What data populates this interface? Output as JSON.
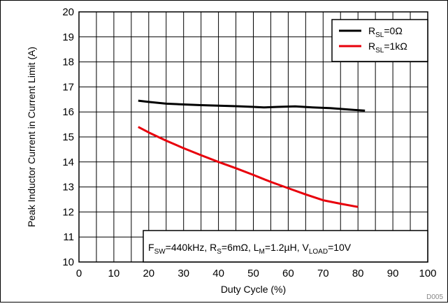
{
  "chart_data": {
    "type": "line",
    "xlabel": "Duty Cycle (%)",
    "ylabel": "Peak Inductor Current in Current Limit (A)",
    "xlim": [
      0,
      100
    ],
    "ylim": [
      10,
      20
    ],
    "x_ticks": [
      0,
      10,
      20,
      30,
      40,
      50,
      60,
      70,
      80,
      90,
      100
    ],
    "y_ticks": [
      10,
      11,
      12,
      13,
      14,
      15,
      16,
      17,
      18,
      19,
      20
    ],
    "minor_x_step": 5,
    "grid": true,
    "legend_position": "top-right",
    "series": [
      {
        "name_main": "R",
        "name_sub": "SL",
        "name_rest": "=0Ω",
        "color": "#000000",
        "points": [
          [
            17,
            16.45
          ],
          [
            20,
            16.4
          ],
          [
            25,
            16.33
          ],
          [
            30,
            16.3
          ],
          [
            35,
            16.27
          ],
          [
            40,
            16.25
          ],
          [
            45,
            16.23
          ],
          [
            50,
            16.2
          ],
          [
            53,
            16.18
          ],
          [
            57,
            16.2
          ],
          [
            62,
            16.22
          ],
          [
            67,
            16.18
          ],
          [
            72,
            16.15
          ],
          [
            77,
            16.1
          ],
          [
            82,
            16.05
          ]
        ]
      },
      {
        "name_main": "R",
        "name_sub": "SL",
        "name_rest": "=1kΩ",
        "color": "#e8000b",
        "points": [
          [
            17,
            15.4
          ],
          [
            20,
            15.18
          ],
          [
            25,
            14.85
          ],
          [
            30,
            14.55
          ],
          [
            35,
            14.27
          ],
          [
            40,
            14.0
          ],
          [
            45,
            13.75
          ],
          [
            50,
            13.48
          ],
          [
            55,
            13.2
          ],
          [
            60,
            12.95
          ],
          [
            65,
            12.7
          ],
          [
            70,
            12.47
          ],
          [
            75,
            12.33
          ],
          [
            80,
            12.2
          ]
        ]
      }
    ],
    "annotation": {
      "parts": [
        {
          "t": "F",
          "sub": false
        },
        {
          "t": "SW",
          "sub": true
        },
        {
          "t": "=440kHz, R",
          "sub": false
        },
        {
          "t": "S",
          "sub": true
        },
        {
          "t": "=6mΩ, L",
          "sub": false
        },
        {
          "t": "M",
          "sub": true
        },
        {
          "t": "=1.2µH, V",
          "sub": false
        },
        {
          "t": "LOAD",
          "sub": true
        },
        {
          "t": "=10V",
          "sub": false
        }
      ]
    },
    "figure_id": "D005"
  }
}
